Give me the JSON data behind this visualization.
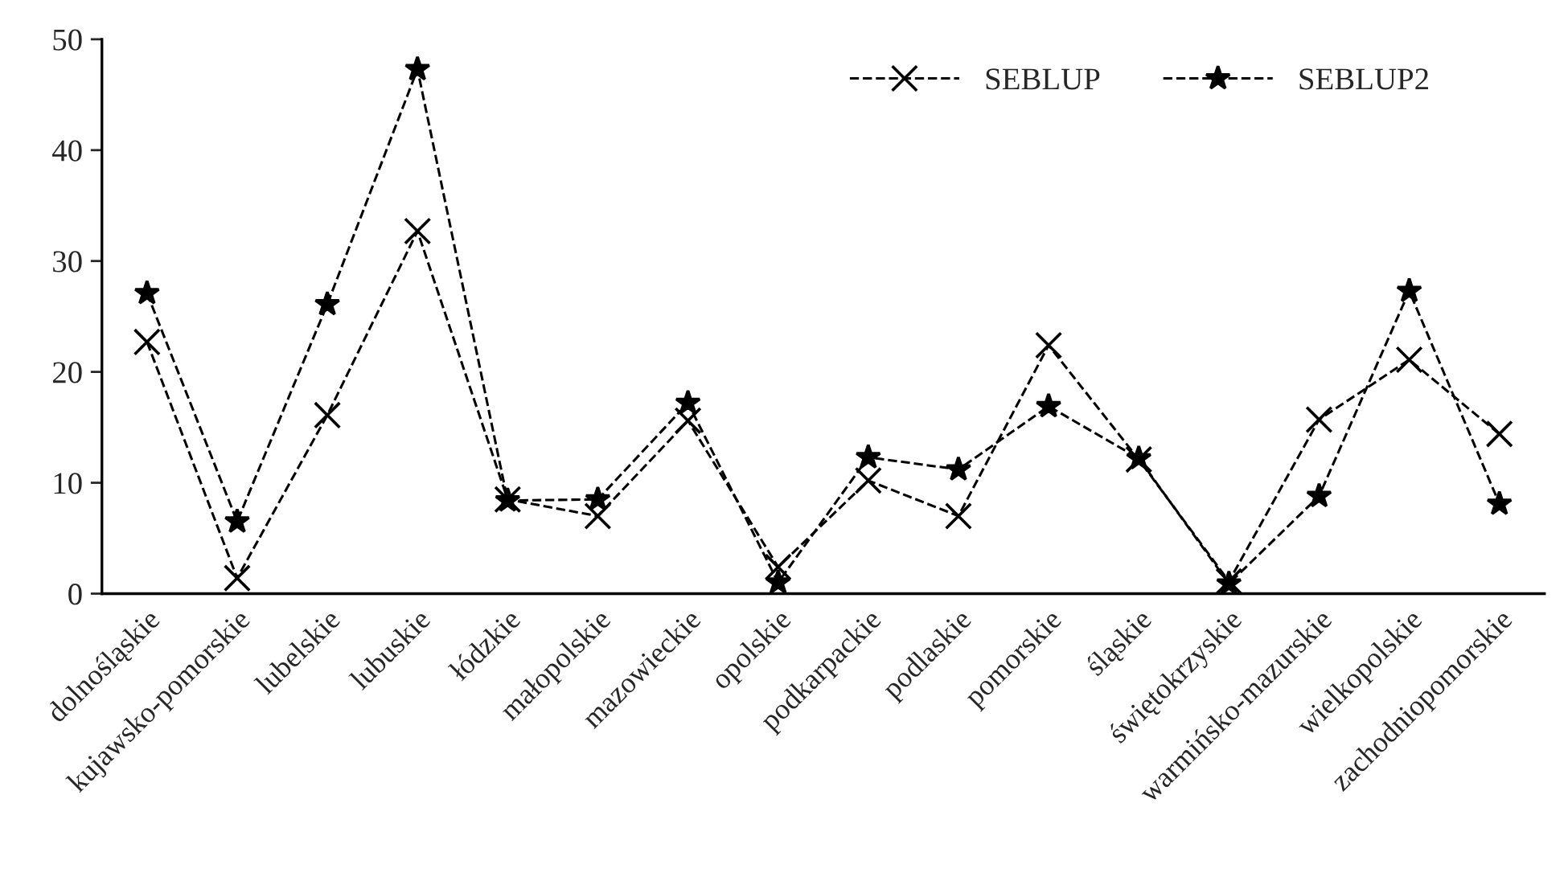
{
  "chart_data": {
    "type": "line",
    "categories": [
      "dolnośląskie",
      "kujawsko-pomorskie",
      "lubelskie",
      "lubuskie",
      "łódzkie",
      "małopolskie",
      "mazowieckie",
      "opolskie",
      "podkarpackie",
      "podlaskie",
      "pomorskie",
      "śląskie",
      "świętokrzyskie",
      "warmińsko-mazurskie",
      "wielkopolskie",
      "zachodniopomorskie"
    ],
    "series": [
      {
        "name": "SEBLUP",
        "color": "#000000",
        "marker": "cross",
        "values": [
          22.7,
          1.4,
          16.1,
          32.7,
          8.5,
          7.0,
          15.6,
          2.4,
          10.2,
          7.0,
          22.4,
          12.1,
          1.1,
          15.7,
          21.1,
          14.4
        ]
      },
      {
        "name": "SEBLUP2",
        "color": "#000000",
        "marker": "star",
        "values": [
          27.1,
          6.5,
          26.1,
          47.3,
          8.4,
          8.5,
          17.2,
          1.0,
          12.3,
          11.2,
          16.9,
          12.2,
          0.9,
          8.8,
          27.3,
          8.1
        ]
      }
    ],
    "ylim": [
      0,
      50
    ],
    "yticks": [
      0,
      10,
      20,
      30,
      40,
      50
    ],
    "line_style": "dashed",
    "legend": "top right",
    "grid": false
  }
}
